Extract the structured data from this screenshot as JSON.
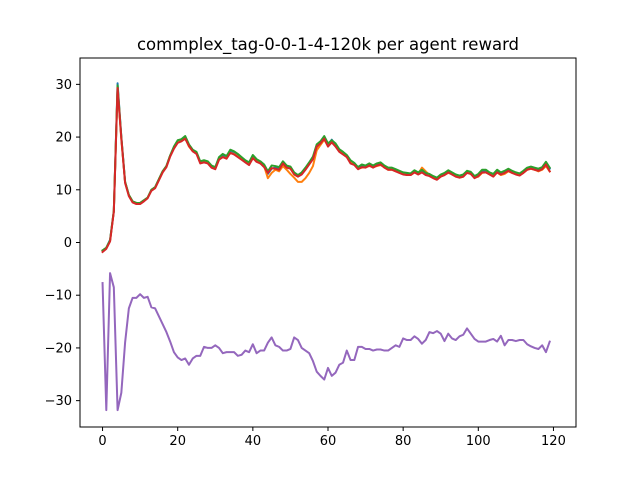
{
  "chart_data": {
    "type": "line",
    "title": "commplex_tag-0-0-1-4-120k per agent reward",
    "xlabel": "",
    "ylabel": "",
    "xlim": [
      -6,
      126
    ],
    "ylim": [
      -35,
      35
    ],
    "xticks": [
      0,
      20,
      40,
      60,
      80,
      100,
      120
    ],
    "yticks": [
      -30,
      -20,
      -10,
      0,
      10,
      20,
      30
    ],
    "grid": false,
    "legend": "none",
    "series": [
      {
        "color": "#1f77b4",
        "x": [
          0,
          1,
          2,
          3,
          4,
          5,
          6,
          7,
          8,
          9,
          10,
          11,
          12,
          13,
          14,
          15,
          16,
          17,
          18,
          19,
          20,
          21,
          22,
          23,
          24,
          25,
          26,
          27,
          28,
          29,
          30,
          31,
          32,
          33,
          34,
          35,
          36,
          37,
          38,
          39,
          40,
          41,
          42,
          43,
          44,
          45,
          46,
          47,
          48,
          49,
          50,
          51,
          52,
          53,
          54,
          55,
          56,
          57,
          58,
          59,
          60,
          61,
          62,
          63,
          64,
          65,
          66,
          67,
          68,
          69,
          70,
          71,
          72,
          73,
          74,
          75,
          76,
          77,
          78,
          79,
          80,
          81,
          82,
          83,
          84,
          85,
          86,
          87,
          88,
          89,
          90,
          91,
          92,
          93,
          94,
          95,
          96,
          97,
          98,
          99,
          100,
          101,
          102,
          103,
          104,
          105,
          106,
          107,
          108,
          109,
          110,
          111,
          112,
          113,
          114,
          115,
          116,
          117,
          118,
          119
        ],
        "y": [
          -1.5,
          -1,
          0.5,
          6,
          30.2,
          20,
          11.5,
          9,
          7.8,
          7.5,
          7.5,
          8,
          8.5,
          10,
          10.5,
          12,
          13.5,
          14.5,
          16.5,
          18,
          19.2,
          19.4,
          20,
          18.5,
          17.5,
          17,
          15.2,
          15.5,
          15.2,
          14.5,
          14.2,
          16,
          16.5,
          16.2,
          17.2,
          17,
          16.5,
          16,
          15.5,
          15,
          16.2,
          15.5,
          15.2,
          14.5,
          13,
          14,
          14.2,
          14,
          15.2,
          14.5,
          14.2,
          13,
          12.5,
          13,
          14,
          15,
          16,
          18.5,
          19,
          20,
          18.5,
          19.5,
          18.5,
          17.5,
          17,
          16.5,
          15.5,
          15,
          14.2,
          14.5,
          14.5,
          14.8,
          14.5,
          14.8,
          15,
          14.5,
          14,
          14,
          13.8,
          13.5,
          13.2,
          13,
          13,
          13.5,
          13.2,
          13.5,
          13,
          12.8,
          12.5,
          12.2,
          12.8,
          13,
          13.5,
          13.2,
          12.8,
          12.5,
          12.8,
          13.5,
          13.2,
          12.5,
          12.8,
          13.5,
          13.5,
          13.2,
          12.8,
          13.5,
          13.2,
          13.5,
          13.8,
          13.5,
          13.2,
          13,
          13.5,
          14,
          14.2,
          14,
          13.8,
          14,
          15,
          14
        ]
      },
      {
        "color": "#ff7f0e",
        "x": [
          0,
          1,
          2,
          3,
          4,
          5,
          6,
          7,
          8,
          9,
          10,
          11,
          12,
          13,
          14,
          15,
          16,
          17,
          18,
          19,
          20,
          21,
          22,
          23,
          24,
          25,
          26,
          27,
          28,
          29,
          30,
          31,
          32,
          33,
          34,
          35,
          36,
          37,
          38,
          39,
          40,
          41,
          42,
          43,
          44,
          45,
          46,
          47,
          48,
          49,
          50,
          51,
          52,
          53,
          54,
          55,
          56,
          57,
          58,
          59,
          60,
          61,
          62,
          63,
          64,
          65,
          66,
          67,
          68,
          69,
          70,
          71,
          72,
          73,
          74,
          75,
          76,
          77,
          78,
          79,
          80,
          81,
          82,
          83,
          84,
          85,
          86,
          87,
          88,
          89,
          90,
          91,
          92,
          93,
          94,
          95,
          96,
          97,
          98,
          99,
          100,
          101,
          102,
          103,
          104,
          105,
          106,
          107,
          108,
          109,
          110,
          111,
          112,
          113,
          114,
          115,
          116,
          117,
          118,
          119
        ],
        "y": [
          -1.5,
          -1,
          0.3,
          6,
          29.5,
          19.5,
          11.5,
          9,
          7.8,
          7.5,
          7.5,
          8,
          8.5,
          10,
          10.5,
          12,
          13.5,
          14.5,
          16.5,
          18,
          19,
          19.3,
          19.8,
          18.2,
          17.3,
          17,
          15.2,
          15.3,
          15.2,
          14.3,
          14,
          15.8,
          16.2,
          16,
          17,
          16.8,
          16.3,
          15.8,
          15.3,
          14.8,
          16,
          15.5,
          15,
          14.5,
          12.2,
          13.2,
          13.8,
          13.5,
          14.5,
          13.8,
          13,
          12.3,
          11.5,
          11.5,
          12.2,
          13.2,
          14.5,
          17.5,
          18.5,
          19.5,
          18.3,
          19,
          18.3,
          17.3,
          16.8,
          16.2,
          15.2,
          14.8,
          14,
          14.2,
          14.3,
          14.5,
          14.3,
          14.5,
          14.7,
          14.3,
          13.8,
          13.8,
          13.5,
          13.3,
          13,
          12.8,
          12.8,
          13.3,
          13,
          14.2,
          13.5,
          12.8,
          12.3,
          12,
          12.5,
          12.8,
          13.2,
          13,
          12.8,
          12.3,
          12.5,
          13.3,
          13,
          12.3,
          12.5,
          13.2,
          13.3,
          13,
          12.5,
          13.3,
          12.8,
          13,
          13.5,
          13.2,
          13,
          12.8,
          13.2,
          13.8,
          14,
          13.8,
          13.5,
          13.8,
          14.5,
          13.5
        ]
      },
      {
        "color": "#2ca02c",
        "x": [
          0,
          1,
          2,
          3,
          4,
          5,
          6,
          7,
          8,
          9,
          10,
          11,
          12,
          13,
          14,
          15,
          16,
          17,
          18,
          19,
          20,
          21,
          22,
          23,
          24,
          25,
          26,
          27,
          28,
          29,
          30,
          31,
          32,
          33,
          34,
          35,
          36,
          37,
          38,
          39,
          40,
          41,
          42,
          43,
          44,
          45,
          46,
          47,
          48,
          49,
          50,
          51,
          52,
          53,
          54,
          55,
          56,
          57,
          58,
          59,
          60,
          61,
          62,
          63,
          64,
          65,
          66,
          67,
          68,
          69,
          70,
          71,
          72,
          73,
          74,
          75,
          76,
          77,
          78,
          79,
          80,
          81,
          82,
          83,
          84,
          85,
          86,
          87,
          88,
          89,
          90,
          91,
          92,
          93,
          94,
          95,
          96,
          97,
          98,
          99,
          100,
          101,
          102,
          103,
          104,
          105,
          106,
          107,
          108,
          109,
          110,
          111,
          112,
          113,
          114,
          115,
          116,
          117,
          118,
          119
        ],
        "y": [
          -1.5,
          -1,
          0.4,
          6,
          29.8,
          20,
          11.5,
          9,
          7.8,
          7.5,
          7.5,
          8,
          8.5,
          10,
          10.5,
          12,
          13.5,
          14.5,
          16.5,
          18.2,
          19.4,
          19.6,
          20.2,
          18.6,
          17.6,
          17.2,
          15.4,
          15.6,
          15.4,
          14.6,
          14.3,
          16.2,
          16.8,
          16.4,
          17.6,
          17.3,
          16.8,
          16.2,
          15.6,
          15.2,
          16.6,
          15.8,
          15.4,
          14.8,
          13.5,
          14.6,
          14.5,
          14.3,
          15.4,
          14.6,
          14.4,
          13.3,
          12.8,
          13.3,
          14.2,
          15.2,
          16.3,
          18.6,
          19.2,
          20.2,
          18.8,
          19.4,
          18.8,
          17.7,
          17.2,
          16.6,
          15.6,
          15.1,
          14.3,
          14.8,
          14.6,
          15,
          14.6,
          15,
          15.2,
          14.6,
          14.2,
          14.2,
          13.9,
          13.6,
          13.3,
          13.2,
          13.1,
          13.7,
          13.3,
          13.8,
          13.2,
          13,
          12.6,
          12.3,
          12.9,
          13.2,
          13.7,
          13.3,
          12.9,
          12.7,
          12.9,
          13.6,
          13.4,
          12.6,
          13,
          13.8,
          13.8,
          13.3,
          13,
          13.8,
          13.3,
          13.6,
          14,
          13.6,
          13.3,
          13.1,
          13.6,
          14.2,
          14.4,
          14.2,
          14,
          14.3,
          15.3,
          14.2
        ]
      },
      {
        "color": "#d62728",
        "x": [
          0,
          1,
          2,
          3,
          4,
          5,
          6,
          7,
          8,
          9,
          10,
          11,
          12,
          13,
          14,
          15,
          16,
          17,
          18,
          19,
          20,
          21,
          22,
          23,
          24,
          25,
          26,
          27,
          28,
          29,
          30,
          31,
          32,
          33,
          34,
          35,
          36,
          37,
          38,
          39,
          40,
          41,
          42,
          43,
          44,
          45,
          46,
          47,
          48,
          49,
          50,
          51,
          52,
          53,
          54,
          55,
          56,
          57,
          58,
          59,
          60,
          61,
          62,
          63,
          64,
          65,
          66,
          67,
          68,
          69,
          70,
          71,
          72,
          73,
          74,
          75,
          76,
          77,
          78,
          79,
          80,
          81,
          82,
          83,
          84,
          85,
          86,
          87,
          88,
          89,
          90,
          91,
          92,
          93,
          94,
          95,
          96,
          97,
          98,
          99,
          100,
          101,
          102,
          103,
          104,
          105,
          106,
          107,
          108,
          109,
          110,
          111,
          112,
          113,
          114,
          115,
          116,
          117,
          118,
          119
        ],
        "y": [
          -1.8,
          -1.2,
          0.2,
          5.8,
          29.3,
          19.8,
          11.3,
          8.8,
          7.6,
          7.3,
          7.3,
          7.8,
          8.4,
          9.8,
          10.3,
          11.8,
          13.3,
          14.3,
          16.3,
          17.8,
          18.9,
          19.2,
          19.7,
          18.3,
          17.3,
          16.8,
          15,
          15.2,
          15,
          14.2,
          13.9,
          15.7,
          16.2,
          15.9,
          17,
          16.7,
          16.2,
          15.7,
          15.2,
          14.7,
          16,
          15.3,
          15,
          14.3,
          13.2,
          14.1,
          14,
          13.8,
          15,
          14.2,
          14,
          12.9,
          12.5,
          12.9,
          13.8,
          14.8,
          15.8,
          18.2,
          18.8,
          19.7,
          18.2,
          19,
          18.2,
          17.2,
          16.7,
          16.2,
          15,
          14.7,
          13.9,
          14.3,
          14.2,
          14.6,
          14.2,
          14.6,
          14.8,
          14.2,
          13.8,
          13.8,
          13.5,
          13.2,
          12.9,
          12.8,
          12.8,
          13.3,
          12.9,
          13.3,
          12.8,
          12.6,
          12.2,
          11.9,
          12.5,
          12.8,
          13.3,
          12.9,
          12.5,
          12.3,
          12.5,
          13.2,
          13,
          12.2,
          12.6,
          13.3,
          13.3,
          12.9,
          12.5,
          13.3,
          12.9,
          13.2,
          13.6,
          13.2,
          12.9,
          12.7,
          13.2,
          13.8,
          14,
          13.8,
          13.6,
          13.9,
          14.8,
          13.5
        ]
      },
      {
        "color": "#9467bd",
        "x": [
          0,
          1,
          2,
          3,
          4,
          5,
          6,
          7,
          8,
          9,
          10,
          11,
          12,
          13,
          14,
          15,
          16,
          17,
          18,
          19,
          20,
          21,
          22,
          23,
          24,
          25,
          26,
          27,
          28,
          29,
          30,
          31,
          32,
          33,
          34,
          35,
          36,
          37,
          38,
          39,
          40,
          41,
          42,
          43,
          44,
          45,
          46,
          47,
          48,
          49,
          50,
          51,
          52,
          53,
          54,
          55,
          56,
          57,
          58,
          59,
          60,
          61,
          62,
          63,
          64,
          65,
          66,
          67,
          68,
          69,
          70,
          71,
          72,
          73,
          74,
          75,
          76,
          77,
          78,
          79,
          80,
          81,
          82,
          83,
          84,
          85,
          86,
          87,
          88,
          89,
          90,
          91,
          92,
          93,
          94,
          95,
          96,
          97,
          98,
          99,
          100,
          101,
          102,
          103,
          104,
          105,
          106,
          107,
          108,
          109,
          110,
          111,
          112,
          113,
          114,
          115,
          116,
          117,
          118,
          119
        ],
        "y": [
          -7.7,
          -31.8,
          -5.8,
          -8.5,
          -31.8,
          -28.5,
          -19,
          -12.5,
          -10.5,
          -10.5,
          -9.8,
          -10.5,
          -10.3,
          -12.3,
          -12.5,
          -14,
          -15.5,
          -17,
          -18.8,
          -20.8,
          -21.8,
          -22.3,
          -22,
          -23.2,
          -22,
          -21.5,
          -21.5,
          -19.8,
          -20,
          -20,
          -19.5,
          -20,
          -21,
          -20.8,
          -20.8,
          -20.8,
          -21.5,
          -21.3,
          -20.5,
          -20.8,
          -19.3,
          -21,
          -20.5,
          -20.5,
          -19,
          -18,
          -19.5,
          -19.8,
          -20.5,
          -20.5,
          -20.2,
          -18,
          -18.5,
          -20,
          -20.5,
          -21,
          -22.5,
          -24.5,
          -25.3,
          -26,
          -23.8,
          -25.3,
          -24.7,
          -23.2,
          -22.8,
          -20.5,
          -22.3,
          -22.3,
          -19.8,
          -19.8,
          -20.2,
          -20.2,
          -20.5,
          -20.3,
          -20.3,
          -20.5,
          -20.5,
          -20,
          -19.5,
          -19.8,
          -18.2,
          -18.5,
          -18.5,
          -17.8,
          -18.3,
          -19.2,
          -18.5,
          -17,
          -17.2,
          -16.8,
          -17.3,
          -18.7,
          -17.3,
          -18.2,
          -18.5,
          -17.8,
          -17.5,
          -16.3,
          -17.3,
          -18.3,
          -18.8,
          -18.8,
          -18.8,
          -18.5,
          -18.3,
          -18.8,
          -17.7,
          -19.5,
          -18.5,
          -18.5,
          -18.7,
          -18.5,
          -18.5,
          -19.3,
          -19.7,
          -20,
          -20.2,
          -19.5,
          -20.8,
          -18.8
        ]
      }
    ]
  }
}
